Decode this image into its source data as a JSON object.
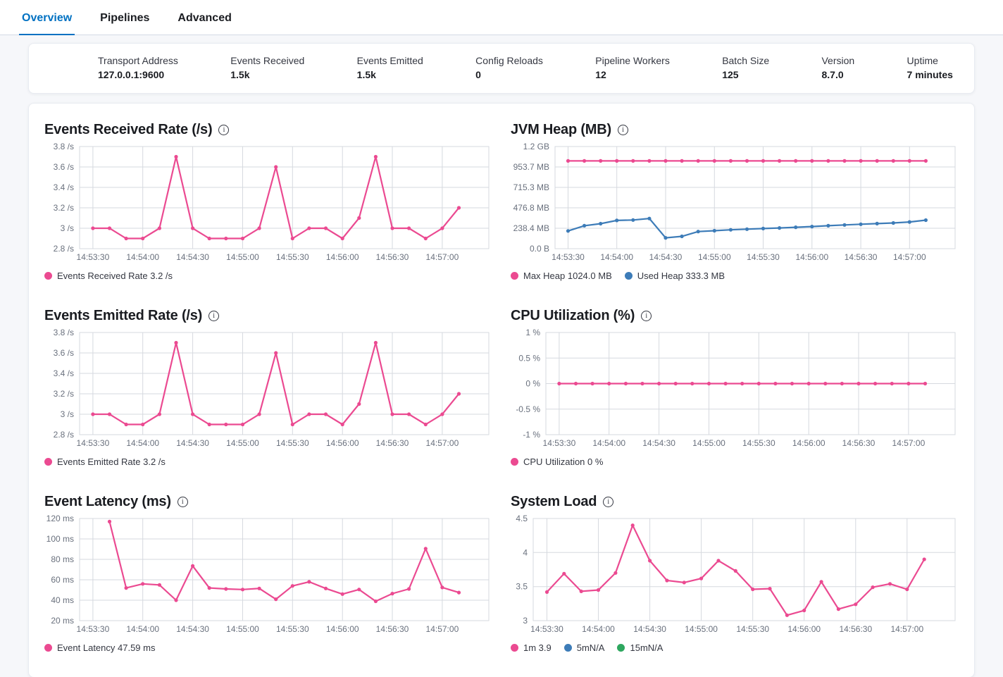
{
  "tabs": [
    {
      "label": "Overview",
      "active": true
    },
    {
      "label": "Pipelines",
      "active": false
    },
    {
      "label": "Advanced",
      "active": false
    }
  ],
  "stats": [
    {
      "label": "Transport Address",
      "value": "127.0.0.1:9600"
    },
    {
      "label": "Events Received",
      "value": "1.5k"
    },
    {
      "label": "Events Emitted",
      "value": "1.5k"
    },
    {
      "label": "Config Reloads",
      "value": "0"
    },
    {
      "label": "Pipeline Workers",
      "value": "12"
    },
    {
      "label": "Batch Size",
      "value": "125"
    },
    {
      "label": "Version",
      "value": "8.7.0"
    },
    {
      "label": "Uptime",
      "value": "7 minutes"
    }
  ],
  "colors": {
    "accent": "#0071c2",
    "pink": "#eb4a91",
    "blue": "#3d7cb8",
    "green": "#2ea75f",
    "grid": "#d6d9df",
    "axis_text": "#69707d"
  },
  "chart_data": [
    {
      "type": "line",
      "title": "Events Received Rate (/s)",
      "xlim": [
        -8,
        238
      ],
      "ylim": [
        2.8,
        3.8
      ],
      "grid": true,
      "legend_position": "bottom",
      "x_ticks": [
        {
          "sec": 0,
          "label": "14:53:30"
        },
        {
          "sec": 30,
          "label": "14:54:00"
        },
        {
          "sec": 60,
          "label": "14:54:30"
        },
        {
          "sec": 90,
          "label": "14:55:00"
        },
        {
          "sec": 120,
          "label": "14:55:30"
        },
        {
          "sec": 150,
          "label": "14:56:00"
        },
        {
          "sec": 180,
          "label": "14:56:30"
        },
        {
          "sec": 210,
          "label": "14:57:00"
        }
      ],
      "y_ticks": [
        {
          "v": 2.8,
          "label": "2.8 /s"
        },
        {
          "v": 3,
          "label": "3 /s"
        },
        {
          "v": 3.2,
          "label": "3.2 /s"
        },
        {
          "v": 3.4,
          "label": "3.4 /s"
        },
        {
          "v": 3.6,
          "label": "3.6 /s"
        },
        {
          "v": 3.8,
          "label": "3.8 /s"
        }
      ],
      "series": [
        {
          "name": "Events Received Rate",
          "color": "#eb4a91",
          "start": 0,
          "step": 10,
          "values": [
            3,
            3,
            2.9,
            2.9,
            3,
            3.7,
            3,
            2.9,
            2.9,
            2.9,
            3,
            3.6,
            2.9,
            3,
            3,
            2.9,
            3.1,
            3.7,
            3,
            3,
            2.9,
            3,
            3.2
          ]
        }
      ],
      "legend": [
        {
          "label": "Events Received Rate 3.2 /s",
          "color": "#eb4a91"
        }
      ]
    },
    {
      "type": "line",
      "title": "JVM Heap (MB)",
      "xlim": [
        -8,
        238
      ],
      "ylim": [
        0,
        1192.1
      ],
      "grid": true,
      "legend_position": "bottom",
      "x_ticks": [
        {
          "sec": 0,
          "label": "14:53:30"
        },
        {
          "sec": 30,
          "label": "14:54:00"
        },
        {
          "sec": 60,
          "label": "14:54:30"
        },
        {
          "sec": 90,
          "label": "14:55:00"
        },
        {
          "sec": 120,
          "label": "14:55:30"
        },
        {
          "sec": 150,
          "label": "14:56:00"
        },
        {
          "sec": 180,
          "label": "14:56:30"
        },
        {
          "sec": 210,
          "label": "14:57:00"
        }
      ],
      "y_ticks": [
        {
          "v": 0,
          "label": "0.0 B"
        },
        {
          "v": 238.4,
          "label": "238.4 MB"
        },
        {
          "v": 476.8,
          "label": "476.8 MB"
        },
        {
          "v": 715.3,
          "label": "715.3 MB"
        },
        {
          "v": 953.7,
          "label": "953.7 MB"
        },
        {
          "v": 1192.1,
          "label": "1.2 GB"
        }
      ],
      "series": [
        {
          "name": "Max Heap",
          "color": "#eb4a91",
          "start": 0,
          "step": 10,
          "values": [
            1024,
            1024,
            1024,
            1024,
            1024,
            1024,
            1024,
            1024,
            1024,
            1024,
            1024,
            1024,
            1024,
            1024,
            1024,
            1024,
            1024,
            1024,
            1024,
            1024,
            1024,
            1024,
            1024
          ]
        },
        {
          "name": "Used Heap",
          "color": "#3d7cb8",
          "start": 0,
          "step": 10,
          "values": [
            207,
            268,
            292,
            330,
            335,
            352,
            127,
            144,
            200,
            210,
            220,
            228,
            235,
            242,
            250,
            258,
            268,
            277,
            285,
            293,
            300,
            312,
            333.3
          ]
        }
      ],
      "legend": [
        {
          "label": "Max Heap 1024.0 MB",
          "color": "#eb4a91"
        },
        {
          "label": "Used Heap 333.3 MB",
          "color": "#3d7cb8"
        }
      ]
    },
    {
      "type": "line",
      "title": "Events Emitted Rate (/s)",
      "xlim": [
        -8,
        238
      ],
      "ylim": [
        2.8,
        3.8
      ],
      "grid": true,
      "legend_position": "bottom",
      "x_ticks": [
        {
          "sec": 0,
          "label": "14:53:30"
        },
        {
          "sec": 30,
          "label": "14:54:00"
        },
        {
          "sec": 60,
          "label": "14:54:30"
        },
        {
          "sec": 90,
          "label": "14:55:00"
        },
        {
          "sec": 120,
          "label": "14:55:30"
        },
        {
          "sec": 150,
          "label": "14:56:00"
        },
        {
          "sec": 180,
          "label": "14:56:30"
        },
        {
          "sec": 210,
          "label": "14:57:00"
        }
      ],
      "y_ticks": [
        {
          "v": 2.8,
          "label": "2.8 /s"
        },
        {
          "v": 3,
          "label": "3 /s"
        },
        {
          "v": 3.2,
          "label": "3.2 /s"
        },
        {
          "v": 3.4,
          "label": "3.4 /s"
        },
        {
          "v": 3.6,
          "label": "3.6 /s"
        },
        {
          "v": 3.8,
          "label": "3.8 /s"
        }
      ],
      "series": [
        {
          "name": "Events Emitted Rate",
          "color": "#eb4a91",
          "start": 0,
          "step": 10,
          "values": [
            3,
            3,
            2.9,
            2.9,
            3,
            3.7,
            3,
            2.9,
            2.9,
            2.9,
            3,
            3.6,
            2.9,
            3,
            3,
            2.9,
            3.1,
            3.7,
            3,
            3,
            2.9,
            3,
            3.2
          ]
        }
      ],
      "legend": [
        {
          "label": "Events Emitted Rate 3.2 /s",
          "color": "#eb4a91"
        }
      ]
    },
    {
      "type": "line",
      "title": "CPU Utilization (%)",
      "xlim": [
        -8,
        238
      ],
      "ylim": [
        -1,
        1
      ],
      "grid": true,
      "legend_position": "bottom",
      "x_ticks": [
        {
          "sec": 0,
          "label": "14:53:30"
        },
        {
          "sec": 30,
          "label": "14:54:00"
        },
        {
          "sec": 60,
          "label": "14:54:30"
        },
        {
          "sec": 90,
          "label": "14:55:00"
        },
        {
          "sec": 120,
          "label": "14:55:30"
        },
        {
          "sec": 150,
          "label": "14:56:00"
        },
        {
          "sec": 180,
          "label": "14:56:30"
        },
        {
          "sec": 210,
          "label": "14:57:00"
        }
      ],
      "y_ticks": [
        {
          "v": -1,
          "label": "-1 %"
        },
        {
          "v": -0.5,
          "label": "-0.5 %"
        },
        {
          "v": 0,
          "label": "0 %"
        },
        {
          "v": 0.5,
          "label": "0.5 %"
        },
        {
          "v": 1,
          "label": "1 %"
        }
      ],
      "series": [
        {
          "name": "CPU Utilization",
          "color": "#eb4a91",
          "start": 0,
          "step": 10,
          "values": [
            0,
            0,
            0,
            0,
            0,
            0,
            0,
            0,
            0,
            0,
            0,
            0,
            0,
            0,
            0,
            0,
            0,
            0,
            0,
            0,
            0,
            0,
            0
          ]
        }
      ],
      "legend": [
        {
          "label": "CPU Utilization 0 %",
          "color": "#eb4a91"
        }
      ]
    },
    {
      "type": "line",
      "title": "Event Latency (ms)",
      "xlim": [
        -8,
        238
      ],
      "ylim": [
        20,
        120
      ],
      "grid": true,
      "legend_position": "bottom",
      "x_ticks": [
        {
          "sec": 0,
          "label": "14:53:30"
        },
        {
          "sec": 30,
          "label": "14:54:00"
        },
        {
          "sec": 60,
          "label": "14:54:30"
        },
        {
          "sec": 90,
          "label": "14:55:00"
        },
        {
          "sec": 120,
          "label": "14:55:30"
        },
        {
          "sec": 150,
          "label": "14:56:00"
        },
        {
          "sec": 180,
          "label": "14:56:30"
        },
        {
          "sec": 210,
          "label": "14:57:00"
        }
      ],
      "y_ticks": [
        {
          "v": 20,
          "label": "20 ms"
        },
        {
          "v": 40,
          "label": "40 ms"
        },
        {
          "v": 60,
          "label": "60 ms"
        },
        {
          "v": 80,
          "label": "80 ms"
        },
        {
          "v": 100,
          "label": "100 ms"
        },
        {
          "v": 120,
          "label": "120 ms"
        }
      ],
      "series": [
        {
          "name": "Event Latency",
          "color": "#eb4a91",
          "start": 10,
          "step": 10,
          "values": [
            117,
            52,
            56,
            55,
            40,
            73.5,
            52,
            51,
            50.5,
            51.5,
            41,
            54,
            58,
            51.5,
            46,
            50.5,
            39,
            46.5,
            51,
            90.5,
            52.5,
            47.5
          ]
        }
      ],
      "legend": [
        {
          "label": "Event Latency 47.59 ms",
          "color": "#eb4a91"
        }
      ]
    },
    {
      "type": "line",
      "title": "System Load",
      "xlim": [
        -8,
        238
      ],
      "ylim": [
        3,
        4.5
      ],
      "grid": true,
      "legend_position": "bottom",
      "x_ticks": [
        {
          "sec": 0,
          "label": "14:53:30"
        },
        {
          "sec": 30,
          "label": "14:54:00"
        },
        {
          "sec": 60,
          "label": "14:54:30"
        },
        {
          "sec": 90,
          "label": "14:55:00"
        },
        {
          "sec": 120,
          "label": "14:55:30"
        },
        {
          "sec": 150,
          "label": "14:56:00"
        },
        {
          "sec": 180,
          "label": "14:56:30"
        },
        {
          "sec": 210,
          "label": "14:57:00"
        }
      ],
      "y_ticks": [
        {
          "v": 3,
          "label": "3"
        },
        {
          "v": 3.5,
          "label": "3.5"
        },
        {
          "v": 4,
          "label": "4"
        },
        {
          "v": 4.5,
          "label": "4.5"
        }
      ],
      "series": [
        {
          "name": "1m",
          "color": "#eb4a91",
          "start": 0,
          "step": 10,
          "values": [
            3.42,
            3.69,
            3.43,
            3.45,
            3.7,
            4.4,
            3.88,
            3.59,
            3.56,
            3.62,
            3.88,
            3.73,
            3.46,
            3.47,
            3.08,
            3.15,
            3.57,
            3.17,
            3.24,
            3.49,
            3.54,
            3.46,
            3.9
          ]
        }
      ],
      "legend": [
        {
          "label": "1m 3.9",
          "color": "#eb4a91"
        },
        {
          "label": "5mN/A",
          "color": "#3d7cb8"
        },
        {
          "label": "15mN/A",
          "color": "#2ea75f"
        }
      ]
    }
  ]
}
